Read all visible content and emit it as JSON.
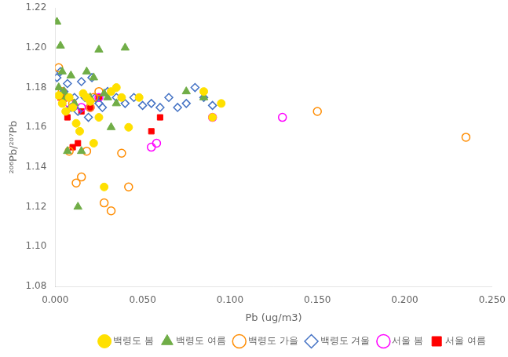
{
  "chart_data": {
    "type": "scatter",
    "xlabel": "Pb (ug/m3)",
    "ylabel": "²⁰⁶Pb/²⁰⁷Pb",
    "xlim": [
      0.0,
      0.25
    ],
    "ylim": [
      1.08,
      1.22
    ],
    "xticks": [
      {
        "value": 0.0,
        "label": "0.000"
      },
      {
        "value": 0.05,
        "label": "0.050"
      },
      {
        "value": 0.1,
        "label": "0.100"
      },
      {
        "value": 0.15,
        "label": "0.150"
      },
      {
        "value": 0.2,
        "label": "0.200"
      },
      {
        "value": 0.25,
        "label": "0.250"
      }
    ],
    "yticks": [
      1.08,
      {
        "value": 1.1,
        "label": "1.10"
      },
      1.12,
      1.14,
      1.16,
      1.18,
      {
        "value": 1.2,
        "label": "1.20"
      },
      1.22
    ],
    "grid": false,
    "legend": "lower right",
    "series": [
      {
        "name": "백령도 봄",
        "color": "#FFE000",
        "marker": "circle",
        "x": [
          0.002,
          0.004,
          0.006,
          0.008,
          0.01,
          0.012,
          0.014,
          0.016,
          0.018,
          0.02,
          0.022,
          0.025,
          0.028,
          0.032,
          0.035,
          0.038,
          0.042,
          0.048,
          0.085,
          0.09,
          0.095
        ],
        "values": [
          1.176,
          1.172,
          1.168,
          1.175,
          1.17,
          1.162,
          1.158,
          1.177,
          1.175,
          1.173,
          1.152,
          1.165,
          1.13,
          1.178,
          1.18,
          1.175,
          1.16,
          1.175,
          1.178,
          1.165,
          1.172
        ]
      },
      {
        "name": "백령도 여름",
        "color": "#70AD47",
        "marker": "triangle",
        "x": [
          0.001,
          0.002,
          0.003,
          0.004,
          0.005,
          0.006,
          0.007,
          0.009,
          0.011,
          0.013,
          0.015,
          0.018,
          0.02,
          0.022,
          0.025,
          0.028,
          0.03,
          0.032,
          0.035,
          0.04,
          0.075,
          0.085
        ],
        "values": [
          1.213,
          1.18,
          1.201,
          1.188,
          1.178,
          1.175,
          1.148,
          1.186,
          1.172,
          1.12,
          1.148,
          1.188,
          1.175,
          1.185,
          1.199,
          1.177,
          1.175,
          1.16,
          1.172,
          1.2,
          1.178,
          1.175
        ]
      },
      {
        "name": "백령도 가을",
        "color": "#FF8C00",
        "marker": "circle-open",
        "x": [
          0.002,
          0.004,
          0.006,
          0.008,
          0.01,
          0.012,
          0.015,
          0.018,
          0.02,
          0.022,
          0.025,
          0.028,
          0.032,
          0.038,
          0.042,
          0.15,
          0.235
        ],
        "values": [
          1.19,
          1.178,
          1.175,
          1.148,
          1.172,
          1.132,
          1.135,
          1.148,
          1.17,
          1.175,
          1.178,
          1.122,
          1.118,
          1.147,
          1.13,
          1.168,
          1.155
        ]
      },
      {
        "name": "백령도 겨울",
        "color": "#4472C4",
        "marker": "diamond-open",
        "x": [
          0.001,
          0.003,
          0.005,
          0.007,
          0.009,
          0.011,
          0.013,
          0.015,
          0.017,
          0.019,
          0.021,
          0.023,
          0.025,
          0.027,
          0.03,
          0.035,
          0.04,
          0.045,
          0.05,
          0.055,
          0.06,
          0.065,
          0.07,
          0.075,
          0.08,
          0.085,
          0.09
        ],
        "values": [
          1.185,
          1.188,
          1.178,
          1.182,
          1.17,
          1.175,
          1.168,
          1.183,
          1.175,
          1.165,
          1.185,
          1.175,
          1.172,
          1.17,
          1.178,
          1.175,
          1.172,
          1.175,
          1.171,
          1.172,
          1.17,
          1.175,
          1.17,
          1.172,
          1.18,
          1.175,
          1.171
        ]
      },
      {
        "name": "서울 봄",
        "color": "#FF00FF",
        "marker": "circle-open",
        "x": [
          0.008,
          0.015,
          0.02,
          0.025,
          0.055,
          0.058,
          0.09,
          0.13
        ],
        "values": [
          1.172,
          1.17,
          1.17,
          1.175,
          1.15,
          1.152,
          1.165,
          1.165
        ]
      },
      {
        "name": "서울 여름",
        "color": "#FF0000",
        "marker": "square",
        "x": [
          0.003,
          0.005,
          0.007,
          0.01,
          0.013,
          0.015,
          0.018,
          0.02,
          0.025,
          0.055,
          0.06
        ],
        "values": [
          1.175,
          1.175,
          1.165,
          1.15,
          1.152,
          1.168,
          1.175,
          1.17,
          1.175,
          1.158,
          1.165
        ]
      }
    ]
  }
}
